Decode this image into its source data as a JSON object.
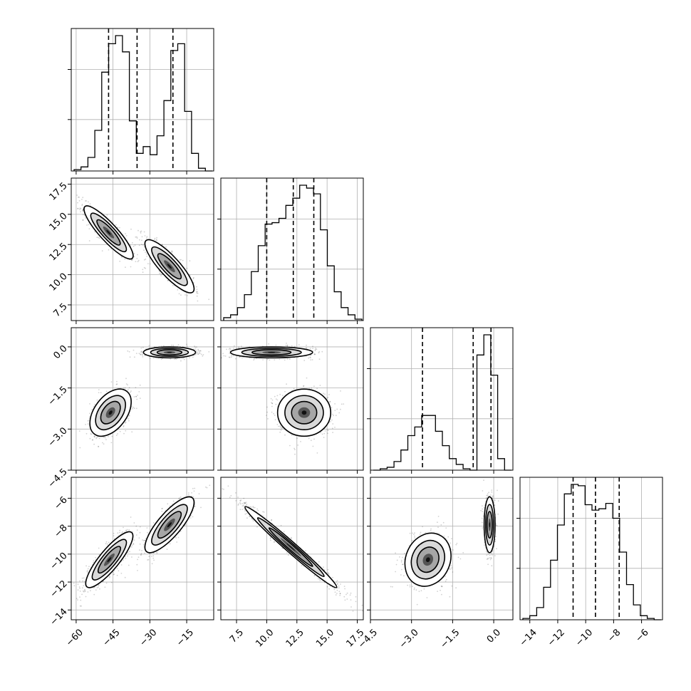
{
  "chart_data": {
    "type": "corner",
    "variables": [
      {
        "ticks": [
          -60,
          -45,
          -30,
          -15
        ],
        "tick_labels": [
          "−60",
          "−45",
          "−30",
          "−15"
        ],
        "range": [
          -62,
          -4
        ]
      },
      {
        "ticks": [
          7.5,
          10.0,
          12.5,
          15.0,
          17.5
        ],
        "tick_labels": [
          "7.5",
          "10.0",
          "12.5",
          "15.0",
          "17.5"
        ],
        "range": [
          6.2,
          18.0
        ]
      },
      {
        "ticks": [
          -4.5,
          -3.0,
          -1.5,
          0.0
        ],
        "tick_labels": [
          "−4.5",
          "−3.0",
          "−1.5",
          "0.0"
        ],
        "range": [
          -4.5,
          0.7
        ]
      },
      {
        "ticks": [
          -14,
          -12,
          -10,
          -8,
          -6
        ],
        "tick_labels": [
          "−14",
          "−12",
          "−10",
          "−8",
          "−6"
        ],
        "range": [
          -14.7,
          -4.5
        ]
      }
    ],
    "histograms": [
      {
        "bins": 20,
        "quantiles": [
          -46.8,
          -35.2,
          -20.6
        ],
        "counts": [
          1,
          3,
          10,
          30,
          73,
          94,
          100,
          88,
          37,
          13,
          18,
          12,
          26,
          52,
          89,
          94,
          44,
          13,
          2,
          0
        ]
      },
      {
        "bins": 20,
        "quantiles": [
          10.0,
          12.2,
          13.9
        ],
        "counts": [
          2,
          4,
          9,
          18,
          34,
          52,
          67,
          68,
          71,
          80,
          85,
          94,
          92,
          88,
          63,
          38,
          20,
          9,
          4,
          1
        ]
      },
      {
        "bins": 20,
        "quantiles": [
          -2.6,
          -0.75,
          -0.1
        ],
        "counts": [
          0,
          1,
          2,
          6,
          14,
          24,
          30,
          38,
          38,
          27,
          17,
          8,
          4,
          1,
          0,
          80,
          94,
          66,
          8,
          0
        ]
      },
      {
        "bins": 20,
        "quantiles": [
          -10.9,
          -9.3,
          -7.6
        ],
        "counts": [
          1,
          3,
          9,
          24,
          44,
          70,
          93,
          100,
          99,
          85,
          81,
          82,
          86,
          75,
          50,
          26,
          11,
          3,
          1,
          0
        ]
      }
    ],
    "pairs": [
      {
        "x": 0,
        "y": 1,
        "modes": [
          {
            "center": [
              -46.8,
              13.5
            ],
            "sd": [
              5.0,
              1.1
            ],
            "corr": -0.88,
            "weight": 0.55
          },
          {
            "center": [
              -22.0,
              10.7
            ],
            "sd": [
              5.0,
              1.1
            ],
            "corr": -0.85,
            "weight": 0.45
          }
        ]
      },
      {
        "x": 0,
        "y": 2,
        "modes": [
          {
            "center": [
              -46.0,
              -2.4
            ],
            "sd": [
              4.2,
              0.43
            ],
            "corr": 0.45,
            "weight": 0.5
          },
          {
            "center": [
              -22.0,
              -0.2
            ],
            "sd": [
              5.3,
              0.1
            ],
            "corr": 0.0,
            "weight": 0.5
          }
        ]
      },
      {
        "x": 0,
        "y": 3,
        "modes": [
          {
            "center": [
              -46.5,
              -10.4
            ],
            "sd": [
              4.8,
              1.0
            ],
            "corr": 0.85,
            "weight": 0.55
          },
          {
            "center": [
              -22.0,
              -7.9
            ],
            "sd": [
              5.0,
              1.0
            ],
            "corr": 0.8,
            "weight": 0.45
          }
        ]
      },
      {
        "x": 1,
        "y": 2,
        "modes": [
          {
            "center": [
              10.4,
              -0.2
            ],
            "sd": [
              1.7,
              0.1
            ],
            "corr": 0.0,
            "weight": 0.5
          },
          {
            "center": [
              13.1,
              -2.4
            ],
            "sd": [
              1.1,
              0.43
            ],
            "corr": 0.0,
            "weight": 0.5
          }
        ]
      },
      {
        "x": 1,
        "y": 3,
        "modes": [
          {
            "center": [
              12.0,
              -9.5
            ],
            "sd": [
              1.9,
              1.45
            ],
            "corr": -0.985,
            "weight": 1.0
          }
        ]
      },
      {
        "x": 2,
        "y": 3,
        "modes": [
          {
            "center": [
              -2.4,
              -10.4
            ],
            "sd": [
              0.42,
              0.95
            ],
            "corr": 0.15,
            "weight": 0.5
          },
          {
            "center": [
              -0.15,
              -7.9
            ],
            "sd": [
              0.1,
              1.0
            ],
            "corr": 0.0,
            "weight": 0.5
          }
        ]
      }
    ],
    "contour_levels": 3,
    "grid": true,
    "title": "",
    "axis_labels": [
      "",
      "",
      "",
      ""
    ]
  }
}
